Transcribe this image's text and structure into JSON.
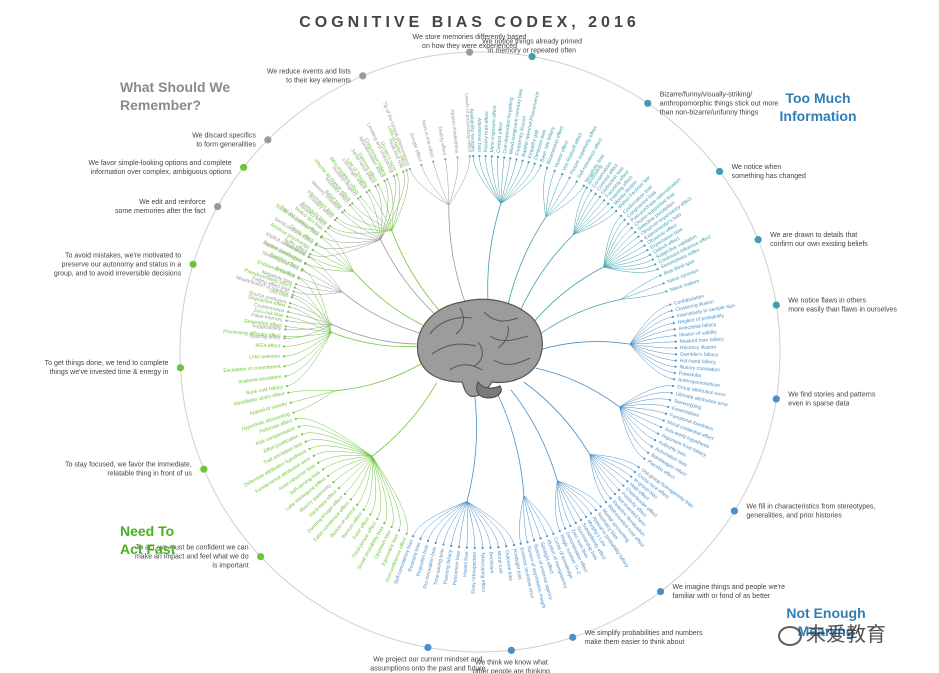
{
  "title": "COGNITIVE BIAS CODEX, 2016",
  "quadrants": [
    {
      "id": "remember",
      "lines": [
        "What Should We",
        "Remember?"
      ],
      "color": "#8a8a8a"
    },
    {
      "id": "info",
      "lines": [
        "Too Much",
        "Information"
      ],
      "color": "#2f7fb6"
    },
    {
      "id": "act",
      "lines": [
        "Need To",
        "Act Fast"
      ],
      "color": "#44b21e"
    },
    {
      "id": "meaning",
      "lines": [
        "Not Enough",
        "Meaning"
      ],
      "color": "#2f7fb6"
    }
  ],
  "colors": {
    "gray": "#9a9a9a",
    "teal": "#3f9fae",
    "blue": "#4a8fc8",
    "green": "#6cc63a",
    "ring": "#cfcfcf"
  },
  "groups": [
    {
      "q": "remember",
      "lines": [
        "We store memories differently based",
        "on how they were experienced"
      ],
      "biases": [
        "Tip of the tongue phenomenon",
        "Google effect",
        "Next-in-line effect",
        "Testing effect",
        "Absent-mindedness",
        "Levels of processing effect"
      ]
    },
    {
      "q": "remember",
      "lines": [
        "We reduce events and lists",
        "to their key elements"
      ],
      "biases": [
        "Suffix effect",
        "Serial position effect",
        "Part-list cueing effect",
        "Recency effect",
        "Primacy effect",
        "Memory inhibition",
        "Modality effect",
        "Duration neglect",
        "List-length effect",
        "Serial recall effect",
        "Misinformation effect",
        "Leveling and sharpening",
        "Peak-end rule"
      ]
    },
    {
      "q": "remember",
      "lines": [
        "We discard specifics",
        "to form generalities"
      ],
      "biases": [
        "Fading affect bias",
        "Negativity bias",
        "Prejudice",
        "Stereotypical bias",
        "Implicit stereotypes",
        "Implicit associations"
      ]
    },
    {
      "q": "remember",
      "lines": [
        "We edit and reinforce",
        "some memories after the fact"
      ],
      "biases": [
        "Spacing effect",
        "Suggestibility",
        "False memory",
        "Cryptomnesia",
        "Source confusion",
        "Misattribution of memory"
      ]
    },
    {
      "q": "info",
      "lines": [
        "We notice things already primed",
        "in memory or repeated often"
      ],
      "biases": [
        "Availability heuristic",
        "Attentional bias",
        "Illusory truth effect",
        "Mere exposure effect",
        "Context effect",
        "Cue-dependent forgetting",
        "Mood-congruent memory bias",
        "Frequency illusion",
        "Baader-Meinhof Phenomenon",
        "Empathy gap",
        "Omission bias",
        "Base rate fallacy"
      ]
    },
    {
      "q": "info",
      "lines": [
        "Bizarre/funny/visually-striking/",
        "anthropomorphic things stick out more",
        "than non-bizarre/unfunny things"
      ],
      "biases": [
        "Bizarreness effect",
        "Humor effect",
        "Von Restorff effect",
        "Picture superiority effect",
        "Self-relevance effect",
        "Negativity bias"
      ]
    },
    {
      "q": "info",
      "lines": [
        "We notice when",
        "something has changed"
      ],
      "biases": [
        "Anchoring",
        "Conservatism",
        "Contrast effect",
        "Distinction bias",
        "Focusing effect",
        "Framing effect",
        "Money illusion",
        "Weber-Fechner law"
      ]
    },
    {
      "q": "info",
      "lines": [
        "We are drawn to details that",
        "confirm our own existing beliefs"
      ],
      "biases": [
        "Confirmation bias",
        "Congruence bias",
        "Post-purchase rationalization",
        "Choice-supportive bias",
        "Selective perception",
        "Observer-expectancy effect",
        "Experimenter's bias",
        "Observer effect",
        "Expectation bias",
        "Ostrich effect",
        "Subjective validation",
        "Continued influence effect",
        "Semmelweis reflex"
      ]
    },
    {
      "q": "info",
      "lines": [
        "We notice flaws in others",
        "more easily than flaws in ourselves"
      ],
      "biases": [
        "Bias blind spot",
        "Naive cynicism",
        "Naive realism"
      ]
    },
    {
      "q": "meaning",
      "lines": [
        "We find stories and patterns",
        "even in sparse data"
      ],
      "biases": [
        "Confabulation",
        "Clustering illusion",
        "Insensitivity to sample size",
        "Neglect of probability",
        "Anecdotal fallacy",
        "Illusion of validity",
        "Masked man fallacy",
        "Recency illusion",
        "Gambler's fallacy",
        "Hot-hand fallacy",
        "Illusory correlation",
        "Pareidolia",
        "Anthropomorphism"
      ]
    },
    {
      "q": "meaning",
      "lines": [
        "We fill in characteristics from stereotypes,",
        "generalities, and prior histories"
      ],
      "biases": [
        "Group attribution error",
        "Ultimate attribution error",
        "Stereotyping",
        "Essentialism",
        "Functional fixedness",
        "Moral credential effect",
        "Just-world hypothesis",
        "Argument from fallacy",
        "Authority bias",
        "Automation bias",
        "Bandwagon effect",
        "Placebo effect"
      ]
    },
    {
      "q": "meaning",
      "lines": [
        "We imagine things and people we're",
        "familiar with or fond of as better"
      ],
      "biases": [
        "Out-group homogeneity bias",
        "Cross-race effect",
        "In-group bias",
        "Halo effect",
        "Cheerleader effect",
        "Positivity effect",
        "Not invented here",
        "Reactive devaluation",
        "Well-traveled road effect"
      ]
    },
    {
      "q": "meaning",
      "lines": [
        "We simplify probabilities and numbers",
        "make them easier to think about"
      ],
      "biases": [
        "Mental accounting",
        "Normalcy bias",
        "Appeal to probability fallacy",
        "Murphy's Law",
        "Subadditivity effect",
        "Survivorship bias",
        "Zero sum bias",
        "Denomination effect",
        "Magic number 7+-2"
      ]
    },
    {
      "q": "meaning",
      "lines": [
        "We think we know what",
        "other people are thinking"
      ],
      "biases": [
        "Curse of knowledge",
        "Illusion of transparency",
        "Spotlight effect",
        "Illusion of external agency",
        "Illusion of asymmetric insight",
        "Extrinsic incentive error"
      ]
    },
    {
      "q": "meaning",
      "lines": [
        "We project our current mindset and",
        "assumptions onto the past and future"
      ],
      "biases": [
        "Hindsight bias",
        "Outcome bias",
        "Moral luck",
        "Declinism",
        "Telescoping effect",
        "Rosy retrospection",
        "Impact bias",
        "Pessimism bias",
        "Planning fallacy",
        "Time-saving bias",
        "Pro-innovation bias",
        "Projection bias",
        "Restraint bias",
        "Self-consistency bias"
      ]
    },
    {
      "q": "act",
      "lines": [
        "To act, we must be confident we can",
        "make an impact and feel what we do",
        "is important"
      ],
      "biases": [
        "Overconfidence effect",
        "Egocentric bias",
        "Optimism bias",
        "Social desirability bias",
        "Third-person effect",
        "Forer effect",
        "Barnum effect",
        "Illusion of control",
        "False consensus effect",
        "Dunning-Kruger effect",
        "Hard-easy effect",
        "Illusory superiority",
        "Lake Wobegone effect",
        "Self-serving bias",
        "Actor-observer bias",
        "Fundamental attribution error",
        "Defensive attribution hypothesis",
        "Trait ascription bias",
        "Effort justification",
        "Risk compensation",
        "Peltzman effect"
      ]
    },
    {
      "q": "act",
      "lines": [
        "To stay focused, we favor the immediate,",
        "relatable thing in front of us"
      ],
      "biases": [
        "Hyperbolic discounting",
        "Appeal to novelty",
        "Identifiable victim effect"
      ]
    },
    {
      "q": "act",
      "lines": [
        "To get things done, we tend to complete",
        "things we've invested time & energy in"
      ],
      "biases": [
        "Sunk cost fallacy",
        "Irrational escalation",
        "Escalation of commitment",
        "Loss aversion",
        "IKEA effect",
        "Processing difficulty effect",
        "Generation effect",
        "Zero-risk bias",
        "Disposition effect",
        "Unit bias",
        "Pseudocertainty effect",
        "Endowment effect",
        "Backfire effect"
      ]
    },
    {
      "q": "act",
      "lines": [
        "To avoid mistakes, we're motivated to",
        "preserve our autonomy and status in a",
        "group, and to avoid irreversible decisions"
      ],
      "biases": [
        "System justification",
        "Reactance",
        "Reverse psychology",
        "Decoy effect",
        "Social comparison bias",
        "Status quo bias"
      ]
    },
    {
      "q": "act",
      "lines": [
        "We favor simple-looking options and complete",
        "information over complex, ambiguous options"
      ],
      "biases": [
        "Ambiguity bias",
        "Information bias",
        "Belief bias",
        "Rhyme as reason effect",
        "Bike-shedding effect",
        "Law of Triviality",
        "Delmore effect",
        "Conjunction fallacy",
        "Occam's razor",
        "Less-is-better effect"
      ]
    }
  ],
  "watermark": "未爱教育"
}
